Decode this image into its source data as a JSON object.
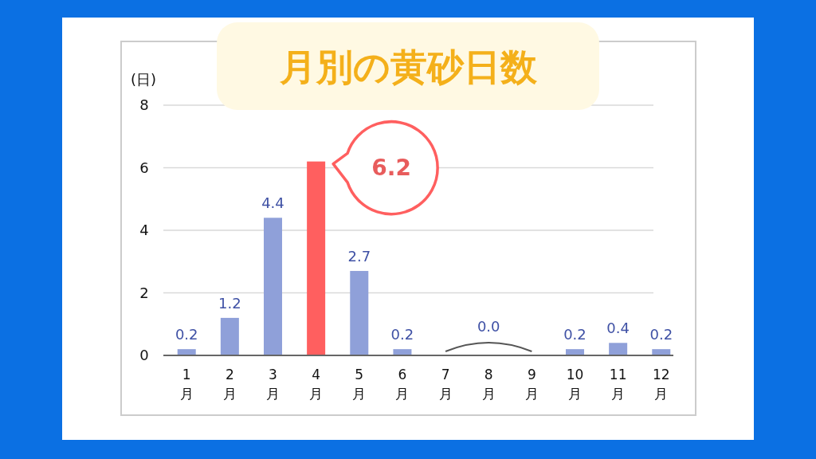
{
  "chart_data": {
    "type": "bar",
    "title": "月別の黄砂日数",
    "ylabel": "(日)",
    "categories": [
      "1\n月",
      "2\n月",
      "3\n月",
      "4\n月",
      "5\n月",
      "6\n月",
      "7\n月",
      "8\n月",
      "9\n月",
      "10\n月",
      "11\n月",
      "12\n月"
    ],
    "values": [
      0.2,
      1.2,
      4.4,
      6.2,
      2.7,
      0.2,
      0,
      0,
      0,
      0.2,
      0.4,
      0.2
    ],
    "colors": [
      "#8fa0d9",
      "#8fa0d9",
      "#8fa0d9",
      "#ff5f5f",
      "#8fa0d9",
      "#8fa0d9",
      "#8fa0d9",
      "#8fa0d9",
      "#8fa0d9",
      "#8fa0d9",
      "#8fa0d9",
      "#8fa0d9"
    ],
    "value_labels": [
      "0.2",
      "1.2",
      "4.4",
      null,
      "2.7",
      "0.2",
      null,
      "0.0",
      null,
      "0.2",
      "0.4",
      "0.2"
    ],
    "annotations": [
      {
        "text": "6.2",
        "x": "4\n月",
        "y": 6.2
      }
    ],
    "ylim": [
      0,
      8
    ],
    "yticks": [
      0,
      2,
      4,
      6,
      8
    ],
    "grid": "y"
  }
}
